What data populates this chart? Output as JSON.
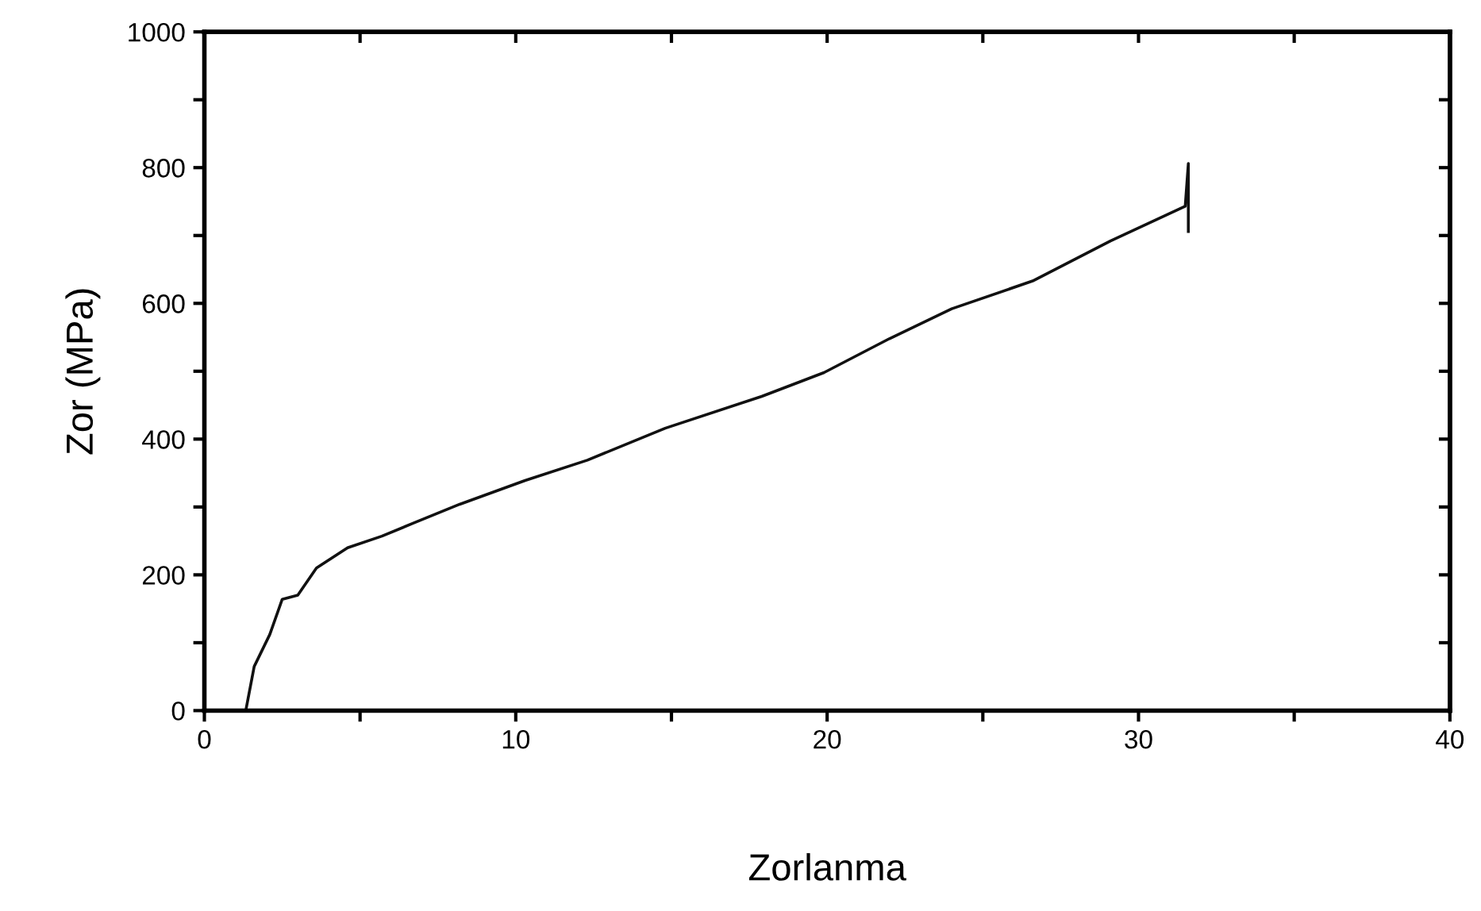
{
  "chart_data": {
    "type": "line",
    "xlabel": "Zorlanma",
    "ylabel": "Zor (MPa)",
    "x": [
      0,
      1.07,
      1.33,
      1.6,
      2.1,
      2.5,
      3.0,
      3.6,
      4.6,
      5.7,
      6.7,
      8.2,
      10.3,
      12.3,
      14.8,
      17.9,
      19.9,
      22.0,
      24.0,
      26.6,
      29.1,
      31.5,
      31.6,
      31.6
    ],
    "series": [
      {
        "color": "#111111",
        "values": [
          0,
          0,
          0,
          65,
          112,
          164,
          170,
          210,
          240,
          257,
          276,
          304,
          339,
          369,
          416,
          463,
          498,
          548,
          592,
          633,
          692,
          743,
          806,
          706
        ]
      }
    ],
    "xlim": [
      0,
      40
    ],
    "ylim": [
      0,
      1000
    ],
    "xticks": [
      0,
      {
        "value": 5,
        "label": null
      },
      10,
      {
        "value": 15,
        "label": null
      },
      20,
      {
        "value": 25,
        "label": null
      },
      30,
      {
        "value": 35,
        "label": null
      },
      40
    ],
    "yticks": [
      0,
      {
        "value": 100,
        "label": null
      },
      200,
      {
        "value": 300,
        "label": null
      },
      400,
      {
        "value": 500,
        "label": null
      },
      600,
      {
        "value": 700,
        "label": null
      },
      800,
      {
        "value": 900,
        "label": null
      },
      1000
    ],
    "grid": false,
    "legend": false,
    "marker": "none",
    "line_style": "solid"
  }
}
